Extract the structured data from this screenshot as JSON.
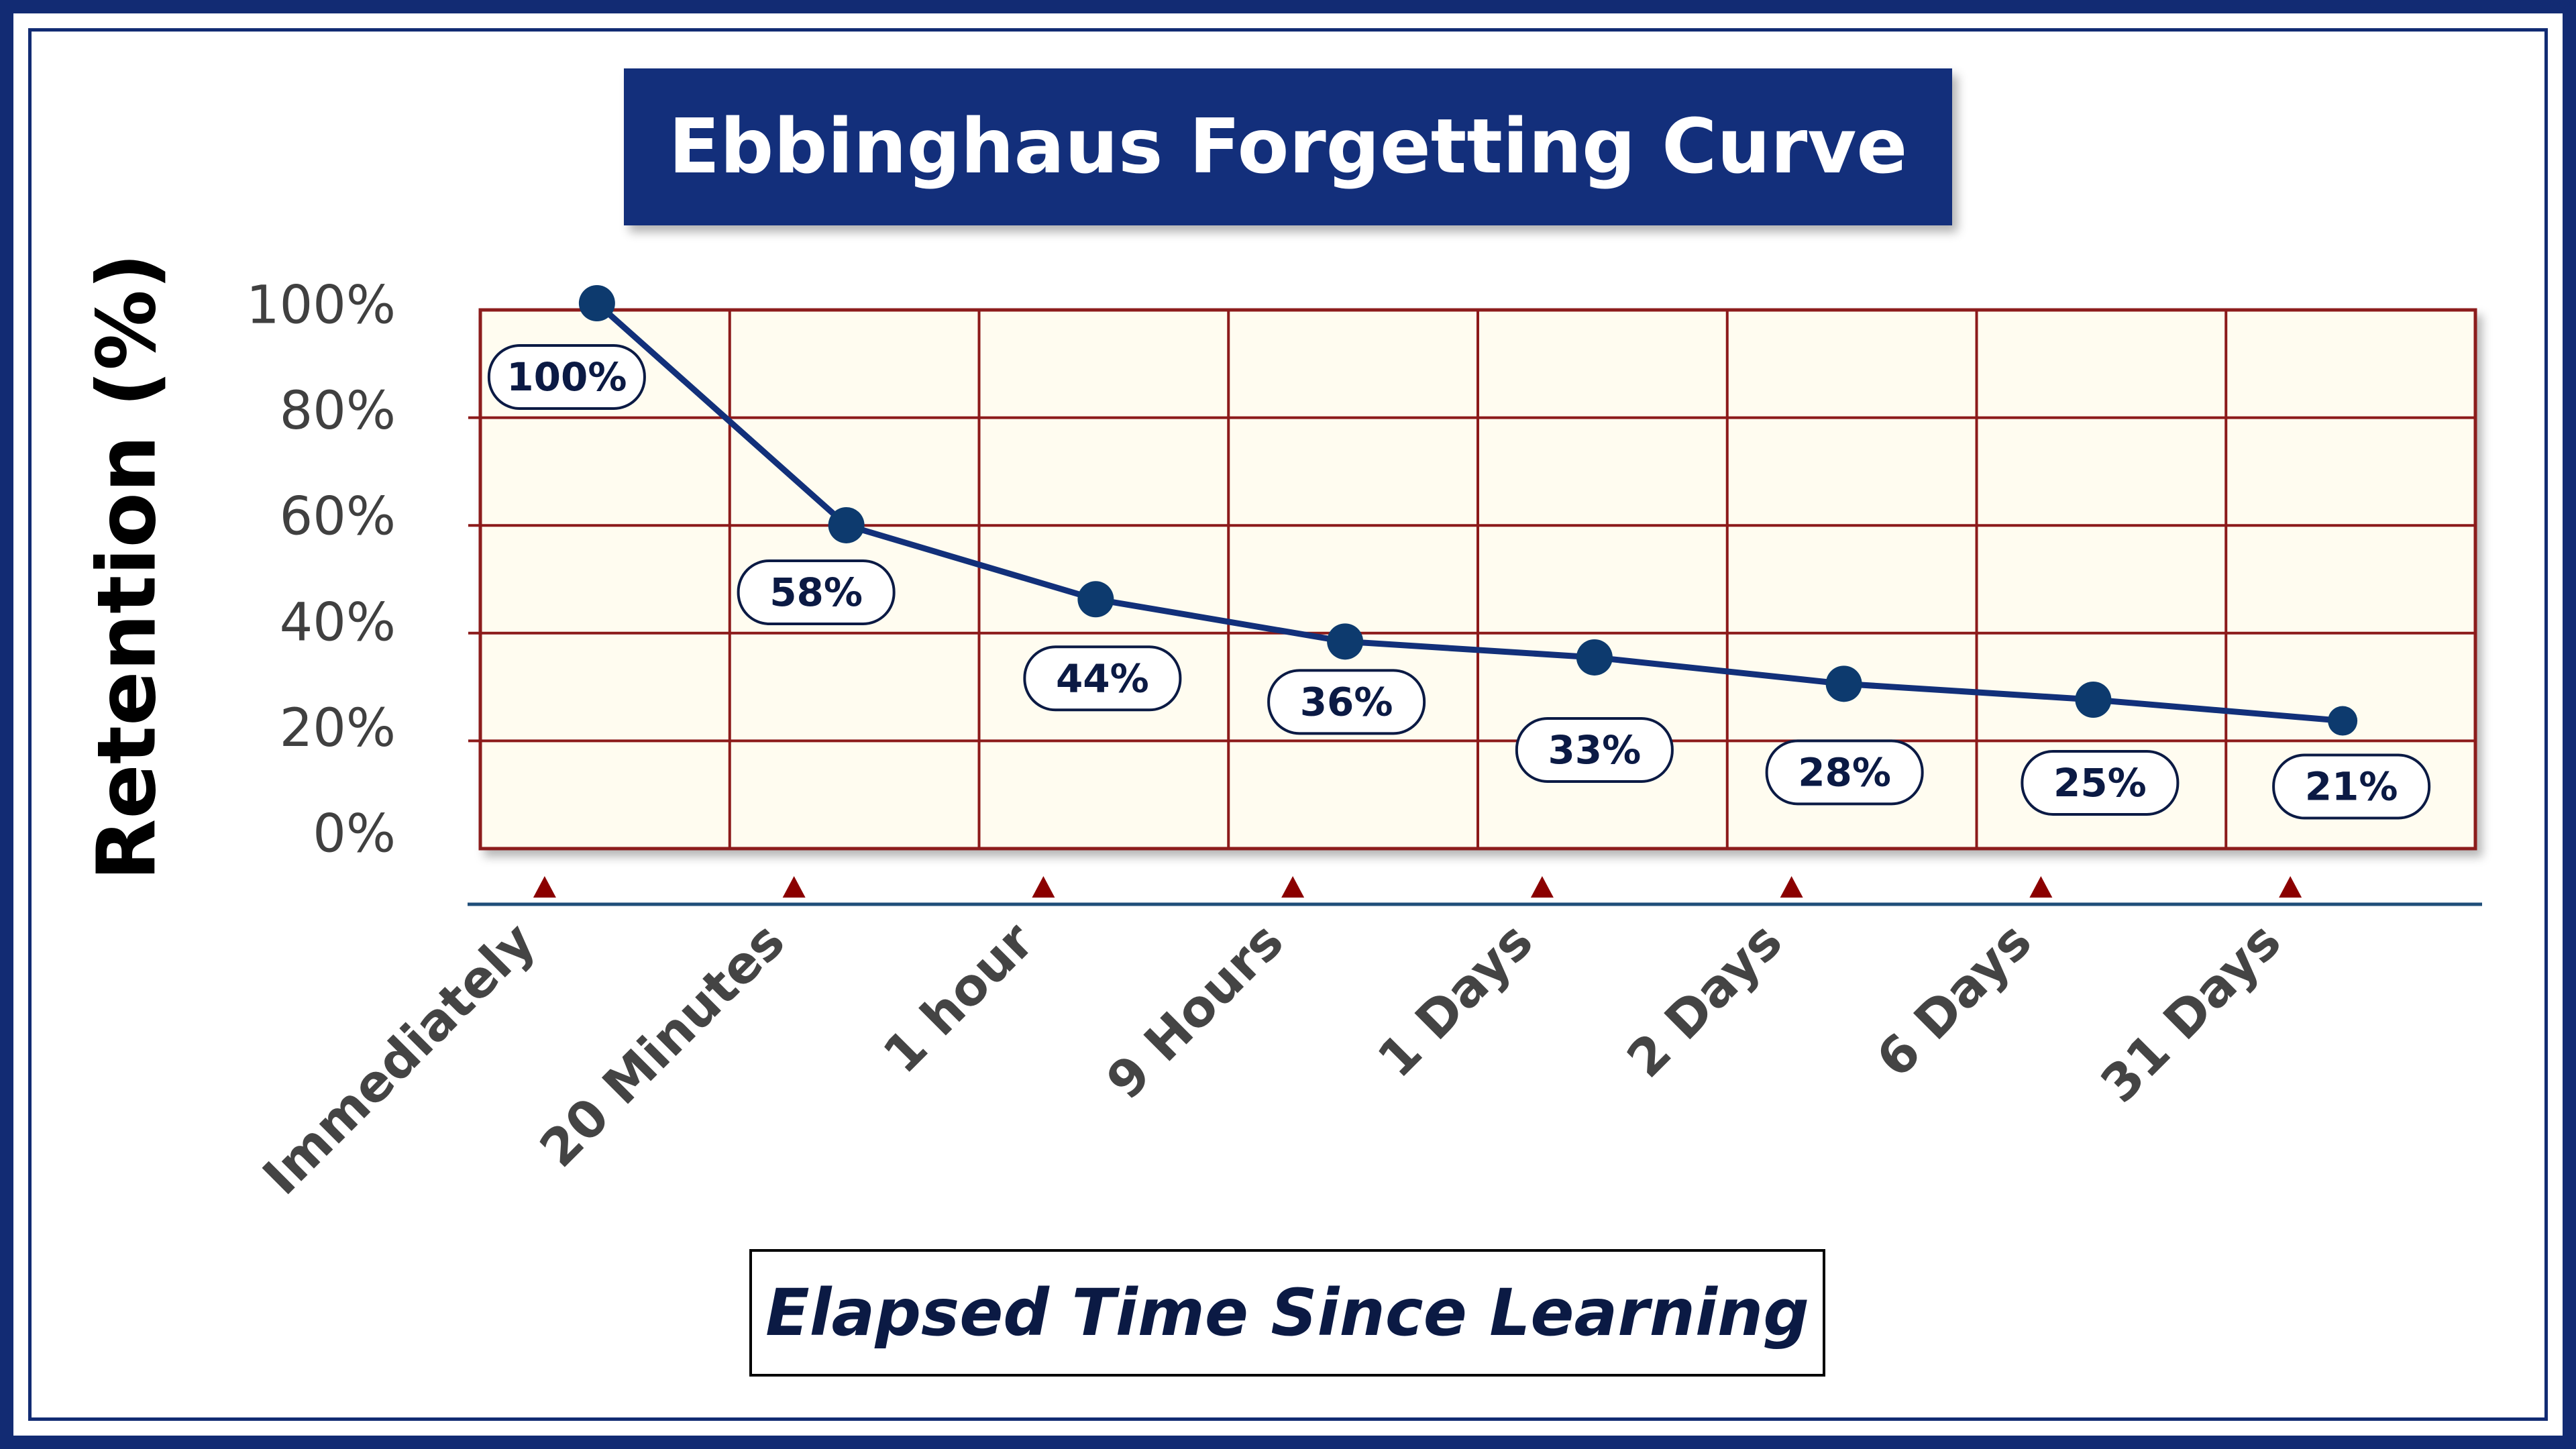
{
  "title": "Ebbinghaus Forgetting Curve",
  "colors": {
    "frame": "#122b73",
    "title_bg": "#132f7b",
    "plot_bg": "#fffcf0",
    "grid": "#8c1a1a",
    "line": "#12307a",
    "marker": "#0d3a6e",
    "tick_marker": "#8b0000",
    "axis_line": "#1f4e79"
  },
  "chart_data": {
    "type": "line",
    "title": "Ebbinghaus Forgetting Curve",
    "xlabel": "Elapsed Time Since Learning",
    "ylabel": "Retention (%)",
    "categories": [
      "Immediately",
      "20 Minutes",
      "1 hour",
      "9 Hours",
      "1 Days",
      "2 Days",
      "6 Days",
      "31 Days"
    ],
    "series": [
      {
        "values": [
          100,
          58,
          44,
          36,
          33,
          28,
          25,
          21
        ],
        "data_labels": [
          "100%",
          "58%",
          "44%",
          "36%",
          "33%",
          "28%",
          "25%",
          "21%"
        ]
      }
    ],
    "y_ticks": [
      "0%",
      "20%",
      "40%",
      "60%",
      "80%",
      "100%"
    ],
    "y_tick_values": [
      0,
      20,
      40,
      60,
      80,
      100
    ],
    "ylim": [
      0,
      100
    ],
    "grid": true,
    "legend": "none",
    "markers": "circle",
    "category_markers": "triangle"
  }
}
